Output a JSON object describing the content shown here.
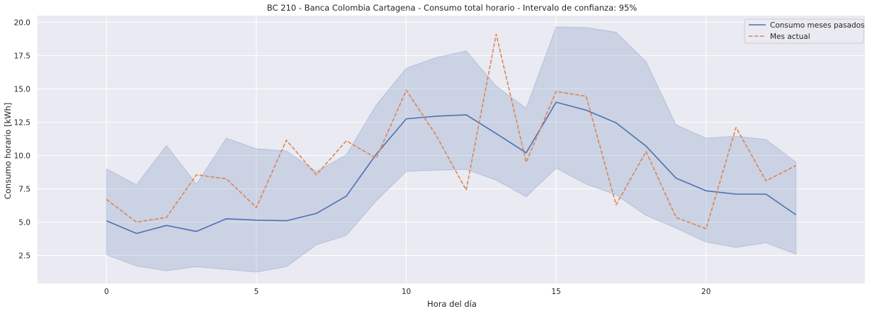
{
  "chart_data": {
    "type": "line",
    "title": "BC 210 - Banca Colombia Cartagena - Consumo total horario - Intervalo de confianza: 95%",
    "xlabel": "Hora del día",
    "ylabel": "Consumo horario [kWh]",
    "xlim": [
      -2.3,
      25.3
    ],
    "ylim": [
      0.4,
      20.5
    ],
    "xticks": [
      0,
      5,
      10,
      15,
      20
    ],
    "xtick_labels": [
      "0",
      "5",
      "10",
      "15",
      "20"
    ],
    "yticks": [
      2.5,
      5.0,
      7.5,
      10.0,
      12.5,
      15.0,
      17.5,
      20.0
    ],
    "ytick_labels": [
      "2.5",
      "5.0",
      "7.5",
      "10.0",
      "12.5",
      "15.0",
      "17.5",
      "20.0"
    ],
    "grid": true,
    "legend_position": "top-right",
    "x": [
      0,
      1,
      2,
      3,
      4,
      5,
      6,
      7,
      8,
      9,
      10,
      11,
      12,
      13,
      14,
      15,
      16,
      17,
      18,
      19,
      20,
      21,
      22,
      23
    ],
    "series": [
      {
        "name": "Consumo meses pasados",
        "style": "solid",
        "color": "#4c72b0",
        "values": [
          5.1,
          4.15,
          4.75,
          4.3,
          5.25,
          5.15,
          5.1,
          5.65,
          6.95,
          10.1,
          12.75,
          12.95,
          13.05,
          11.65,
          10.2,
          14.0,
          13.4,
          12.45,
          10.7,
          8.3,
          7.35,
          7.1,
          7.1,
          5.55
        ]
      },
      {
        "name": "Mes actual",
        "style": "dashed",
        "color": "#dd8452",
        "values": [
          6.7,
          5.0,
          5.35,
          8.55,
          8.25,
          6.1,
          11.15,
          8.55,
          11.1,
          9.8,
          14.9,
          11.5,
          7.4,
          19.1,
          9.5,
          14.8,
          14.45,
          6.3,
          10.3,
          5.35,
          4.5,
          12.1,
          8.1,
          9.25
        ]
      }
    ],
    "confidence_band": {
      "series": "Consumo meses pasados",
      "color": "#4c72b0",
      "lower": [
        2.55,
        1.7,
        1.35,
        1.65,
        1.45,
        1.25,
        1.65,
        3.3,
        4.0,
        6.6,
        8.8,
        8.9,
        8.95,
        8.15,
        6.9,
        9.05,
        7.85,
        7.05,
        5.5,
        4.55,
        3.5,
        3.1,
        3.45,
        2.6
      ],
      "upper": [
        9.0,
        7.8,
        10.75,
        7.85,
        11.3,
        10.5,
        10.35,
        8.8,
        10.05,
        13.8,
        16.55,
        17.35,
        17.85,
        15.2,
        13.55,
        19.65,
        19.6,
        19.25,
        17.05,
        12.3,
        11.3,
        11.45,
        11.2,
        9.5
      ]
    }
  }
}
